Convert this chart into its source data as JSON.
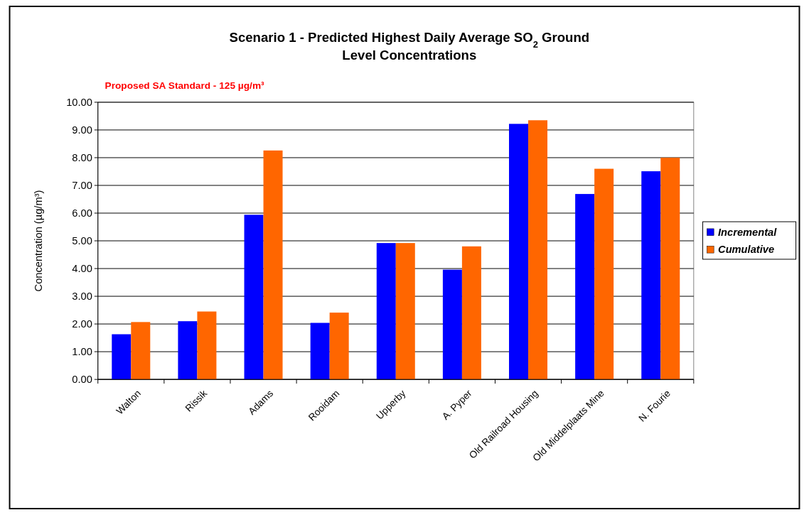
{
  "chart_data": {
    "type": "bar",
    "title": "Scenario 1 - Predicted Highest Daily Average SO$_{2}$ Ground Level Concentrations",
    "annotations": [
      "Proposed SA Standard - 125 µg/m³"
    ],
    "ylabel": "Concentration (µg/m³)",
    "categories": [
      "Walton",
      "Rissik",
      "Adams",
      "Rooidam",
      "Upperby",
      "A. Pyper",
      "Old Railroad Housing",
      "Old Middelplaats Mine",
      "N. Fourie"
    ],
    "series": [
      {
        "name": "Incremental",
        "color": "#0000ff",
        "values": [
          1.63,
          2.1,
          5.94,
          2.04,
          4.92,
          3.96,
          9.22,
          6.69,
          7.51
        ]
      },
      {
        "name": "Cumulative",
        "color": "#ff6600",
        "values": [
          2.07,
          2.45,
          8.26,
          2.41,
          4.92,
          4.8,
          9.35,
          7.6,
          8.0
        ]
      }
    ],
    "ylim": [
      0,
      10
    ],
    "yticks": [
      {
        "value": 0,
        "label": "0.00"
      },
      {
        "value": 1,
        "label": "1.00"
      },
      {
        "value": 2,
        "label": "2.00"
      },
      {
        "value": 3,
        "label": "3.00"
      },
      {
        "value": 4,
        "label": "4.00"
      },
      {
        "value": 5,
        "label": "5.00"
      },
      {
        "value": 6,
        "label": "6.00"
      },
      {
        "value": 7,
        "label": "7.00"
      },
      {
        "value": 8,
        "label": "8.00"
      },
      {
        "value": 9,
        "label": "9.00"
      },
      {
        "value": 10,
        "label": "10.00"
      }
    ],
    "grid": "y",
    "legend": "right"
  }
}
